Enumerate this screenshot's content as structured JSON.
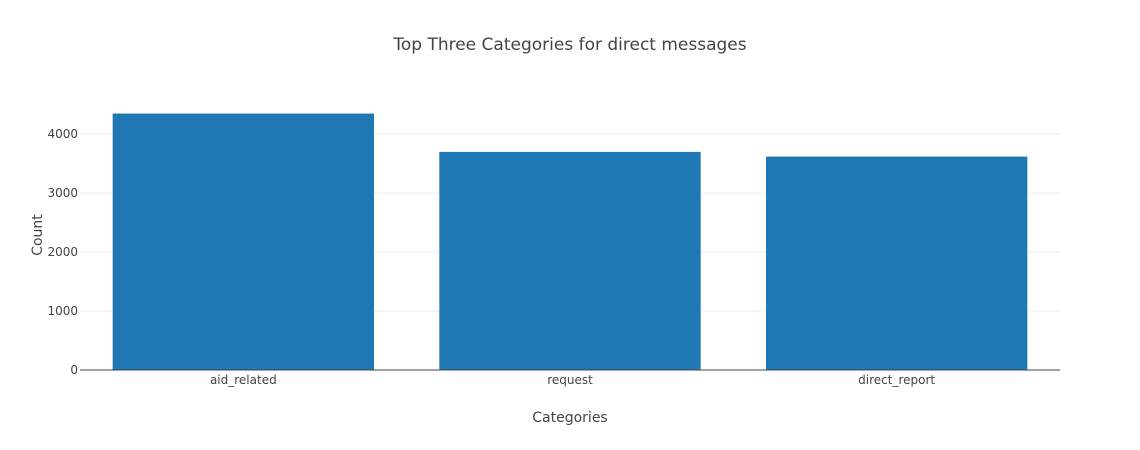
{
  "chart_data": {
    "type": "bar",
    "title": "Top Three Categories for direct messages",
    "xlabel": "Categories",
    "ylabel": "Count",
    "categories": [
      "aid_related",
      "request",
      "direct_report"
    ],
    "values": [
      4350,
      3700,
      3620
    ],
    "ylim": [
      0,
      4580
    ],
    "yticks": [
      0,
      1000,
      2000,
      3000,
      4000
    ],
    "grid": true,
    "bar_color": "#1f77b4",
    "legend": "none"
  }
}
